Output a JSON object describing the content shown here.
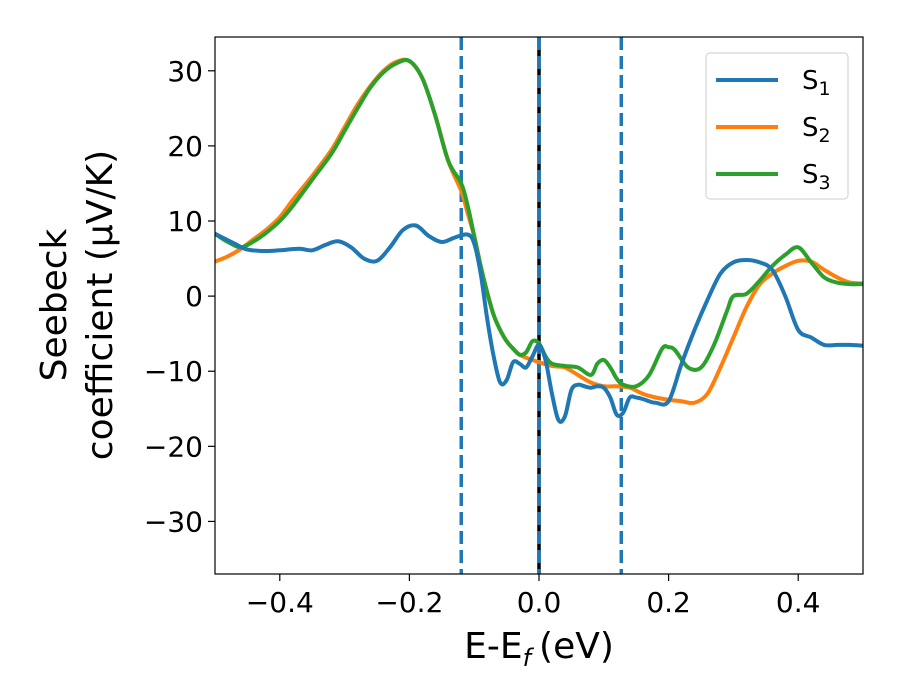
{
  "chart_data": {
    "type": "line",
    "xlabel_base": "E-E",
    "xlabel_sub": "f",
    "xlabel_unit": "(eV)",
    "ylabel_line1": "Seebeck",
    "ylabel_line2": "coefficient  (μV/K)",
    "xlim": [
      -0.5,
      0.5
    ],
    "ylim": [
      -37,
      34.5
    ],
    "xticks": [
      -0.4,
      -0.2,
      0.0,
      0.2,
      0.4
    ],
    "xtick_labels": [
      "−0.4",
      "−0.2",
      "0.0",
      "0.2",
      "0.4"
    ],
    "yticks": [
      -30,
      -20,
      -10,
      0,
      10,
      20,
      30
    ],
    "ytick_labels": [
      "−30",
      "−20",
      "−10",
      "0",
      "10",
      "20",
      "30"
    ],
    "legend_position": "top-right",
    "vlines": [
      {
        "x": -0.12,
        "style": "dashed",
        "color": "#1f77b4"
      },
      {
        "x": 0.0,
        "style": "solid",
        "color": "#000000"
      },
      {
        "x": 0.0,
        "style": "dashed",
        "color": "#1f77b4"
      },
      {
        "x": 0.127,
        "style": "dashed",
        "color": "#1f77b4"
      }
    ],
    "series": [
      {
        "name": "S",
        "sub": "1",
        "color": "#1f77b4",
        "x": [
          -0.5,
          -0.47,
          -0.45,
          -0.42,
          -0.4,
          -0.37,
          -0.35,
          -0.33,
          -0.31,
          -0.29,
          -0.27,
          -0.25,
          -0.23,
          -0.21,
          -0.19,
          -0.17,
          -0.15,
          -0.13,
          -0.11,
          -0.1,
          -0.09,
          -0.08,
          -0.07,
          -0.06,
          -0.05,
          -0.04,
          -0.03,
          -0.02,
          -0.01,
          0.0,
          0.01,
          0.02,
          0.03,
          0.04,
          0.05,
          0.06,
          0.07,
          0.08,
          0.09,
          0.1,
          0.11,
          0.12,
          0.13,
          0.14,
          0.15,
          0.16,
          0.17,
          0.18,
          0.2,
          0.22,
          0.24,
          0.26,
          0.28,
          0.3,
          0.32,
          0.34,
          0.36,
          0.38,
          0.4,
          0.42,
          0.44,
          0.46,
          0.48,
          0.5
        ],
        "y": [
          8.3,
          7.0,
          6.2,
          6.0,
          6.1,
          6.3,
          6.1,
          6.8,
          7.3,
          6.5,
          5.0,
          4.7,
          6.5,
          8.8,
          9.4,
          8.0,
          7.2,
          7.8,
          8.2,
          7.0,
          3.0,
          -3.0,
          -8.0,
          -11.5,
          -11.2,
          -8.8,
          -9.0,
          -9.5,
          -8.0,
          -6.5,
          -8.5,
          -13.0,
          -16.5,
          -16.0,
          -12.5,
          -11.8,
          -12.0,
          -12.2,
          -12.0,
          -12.2,
          -13.5,
          -15.8,
          -15.5,
          -13.5,
          -13.5,
          -13.7,
          -14.0,
          -14.2,
          -14.0,
          -9.0,
          -4.5,
          -0.5,
          3.0,
          4.5,
          4.8,
          4.5,
          3.5,
          0.0,
          -4.5,
          -5.5,
          -6.5,
          -6.5,
          -6.5,
          -6.6
        ]
      },
      {
        "name": "S",
        "sub": "2",
        "color": "#ff7f0e",
        "x": [
          -0.5,
          -0.48,
          -0.46,
          -0.44,
          -0.42,
          -0.4,
          -0.38,
          -0.35,
          -0.32,
          -0.3,
          -0.28,
          -0.26,
          -0.24,
          -0.22,
          -0.2,
          -0.18,
          -0.16,
          -0.14,
          -0.12,
          -0.11,
          -0.1,
          -0.09,
          -0.08,
          -0.07,
          -0.06,
          -0.05,
          -0.04,
          -0.03,
          -0.02,
          -0.01,
          0.0,
          0.02,
          0.04,
          0.06,
          0.08,
          0.1,
          0.12,
          0.14,
          0.16,
          0.18,
          0.2,
          0.22,
          0.24,
          0.26,
          0.28,
          0.3,
          0.32,
          0.34,
          0.36,
          0.38,
          0.4,
          0.42,
          0.44,
          0.46,
          0.48,
          0.5
        ],
        "y": [
          4.6,
          5.3,
          6.3,
          7.6,
          8.9,
          10.5,
          12.8,
          16.0,
          19.5,
          22.5,
          25.5,
          28.0,
          30.0,
          31.2,
          31.3,
          29.0,
          24.0,
          18.0,
          14.0,
          11.0,
          8.0,
          4.0,
          0.5,
          -2.5,
          -4.5,
          -6.0,
          -7.0,
          -7.8,
          -8.2,
          -8.5,
          -8.8,
          -9.3,
          -9.5,
          -10.5,
          -11.5,
          -12.0,
          -12.0,
          -12.2,
          -13.0,
          -13.5,
          -13.8,
          -14.0,
          -14.2,
          -13.0,
          -9.5,
          -5.5,
          -1.5,
          1.5,
          3.0,
          4.0,
          4.7,
          4.6,
          3.5,
          2.5,
          1.8,
          1.7
        ]
      },
      {
        "name": "S",
        "sub": "3",
        "color": "#2ca02c",
        "x": [
          -0.5,
          -0.48,
          -0.46,
          -0.44,
          -0.42,
          -0.4,
          -0.38,
          -0.35,
          -0.32,
          -0.3,
          -0.28,
          -0.26,
          -0.24,
          -0.22,
          -0.2,
          -0.18,
          -0.16,
          -0.14,
          -0.12,
          -0.11,
          -0.1,
          -0.09,
          -0.08,
          -0.07,
          -0.06,
          -0.05,
          -0.04,
          -0.03,
          -0.02,
          -0.01,
          0.0,
          0.01,
          0.02,
          0.04,
          0.06,
          0.08,
          0.09,
          0.1,
          0.11,
          0.12,
          0.13,
          0.15,
          0.17,
          0.19,
          0.2,
          0.21,
          0.23,
          0.25,
          0.27,
          0.29,
          0.3,
          0.32,
          0.34,
          0.36,
          0.38,
          0.4,
          0.42,
          0.44,
          0.46,
          0.48,
          0.5
        ],
        "y": [
          8.3,
          7.2,
          6.5,
          7.3,
          8.5,
          10.0,
          12.0,
          15.5,
          19.0,
          22.0,
          25.0,
          27.8,
          29.8,
          31.0,
          31.3,
          29.0,
          24.0,
          18.0,
          15.0,
          12.0,
          8.0,
          4.0,
          0.5,
          -2.5,
          -4.5,
          -6.0,
          -7.0,
          -7.8,
          -7.5,
          -6.0,
          -6.3,
          -8.0,
          -9.0,
          -9.3,
          -9.5,
          -10.5,
          -9.0,
          -8.5,
          -9.5,
          -11.0,
          -11.8,
          -12.0,
          -10.5,
          -7.0,
          -6.8,
          -7.2,
          -9.5,
          -9.5,
          -6.5,
          -2.0,
          0.0,
          0.3,
          2.0,
          4.0,
          5.5,
          6.5,
          4.5,
          2.5,
          1.8,
          1.6,
          1.6
        ]
      }
    ]
  }
}
